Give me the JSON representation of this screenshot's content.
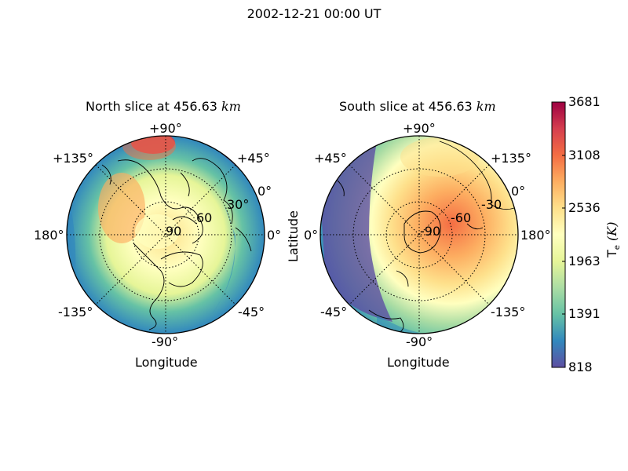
{
  "figure": {
    "title": "2002-12-21 00:00 UT"
  },
  "north": {
    "title": "North slice at 456.63",
    "title_unit": "km",
    "xlabel": "Longitude",
    "lon_labels": {
      "top": "+90°",
      "upper_left": "+135°",
      "upper_right": "+45°",
      "left": "180°",
      "right": "0°",
      "lower_left": "-135°",
      "lower_right": "-45°",
      "bottom": "-90°"
    },
    "lat_labels": [
      "90",
      "60",
      "30°",
      "0°"
    ]
  },
  "south": {
    "title": "South slice at 456.63",
    "title_unit": "km",
    "xlabel": "Longitude",
    "ylabel": "Latitude",
    "lon_labels": {
      "top": "+90°",
      "upper_left": "+45°",
      "upper_right": "+135°",
      "left": "0°",
      "right": "180°",
      "lower_left": "-45°",
      "lower_right": "-135°",
      "bottom": "-90°"
    },
    "lat_labels": [
      "-90",
      "-60",
      "-30",
      "0°"
    ]
  },
  "colorbar": {
    "label": "T",
    "label_sub": "e",
    "label_unit": "(K)",
    "ticks": [
      "3681",
      "3108",
      "2536",
      "1963",
      "1391",
      "818"
    ],
    "min": 818,
    "max": 3681,
    "colormap": [
      "#5e4fa2",
      "#3288bd",
      "#66c2a5",
      "#abdda4",
      "#e6f598",
      "#ffffbf",
      "#fee08b",
      "#fdae61",
      "#f46d43",
      "#d53e4f",
      "#9e0142"
    ]
  }
}
